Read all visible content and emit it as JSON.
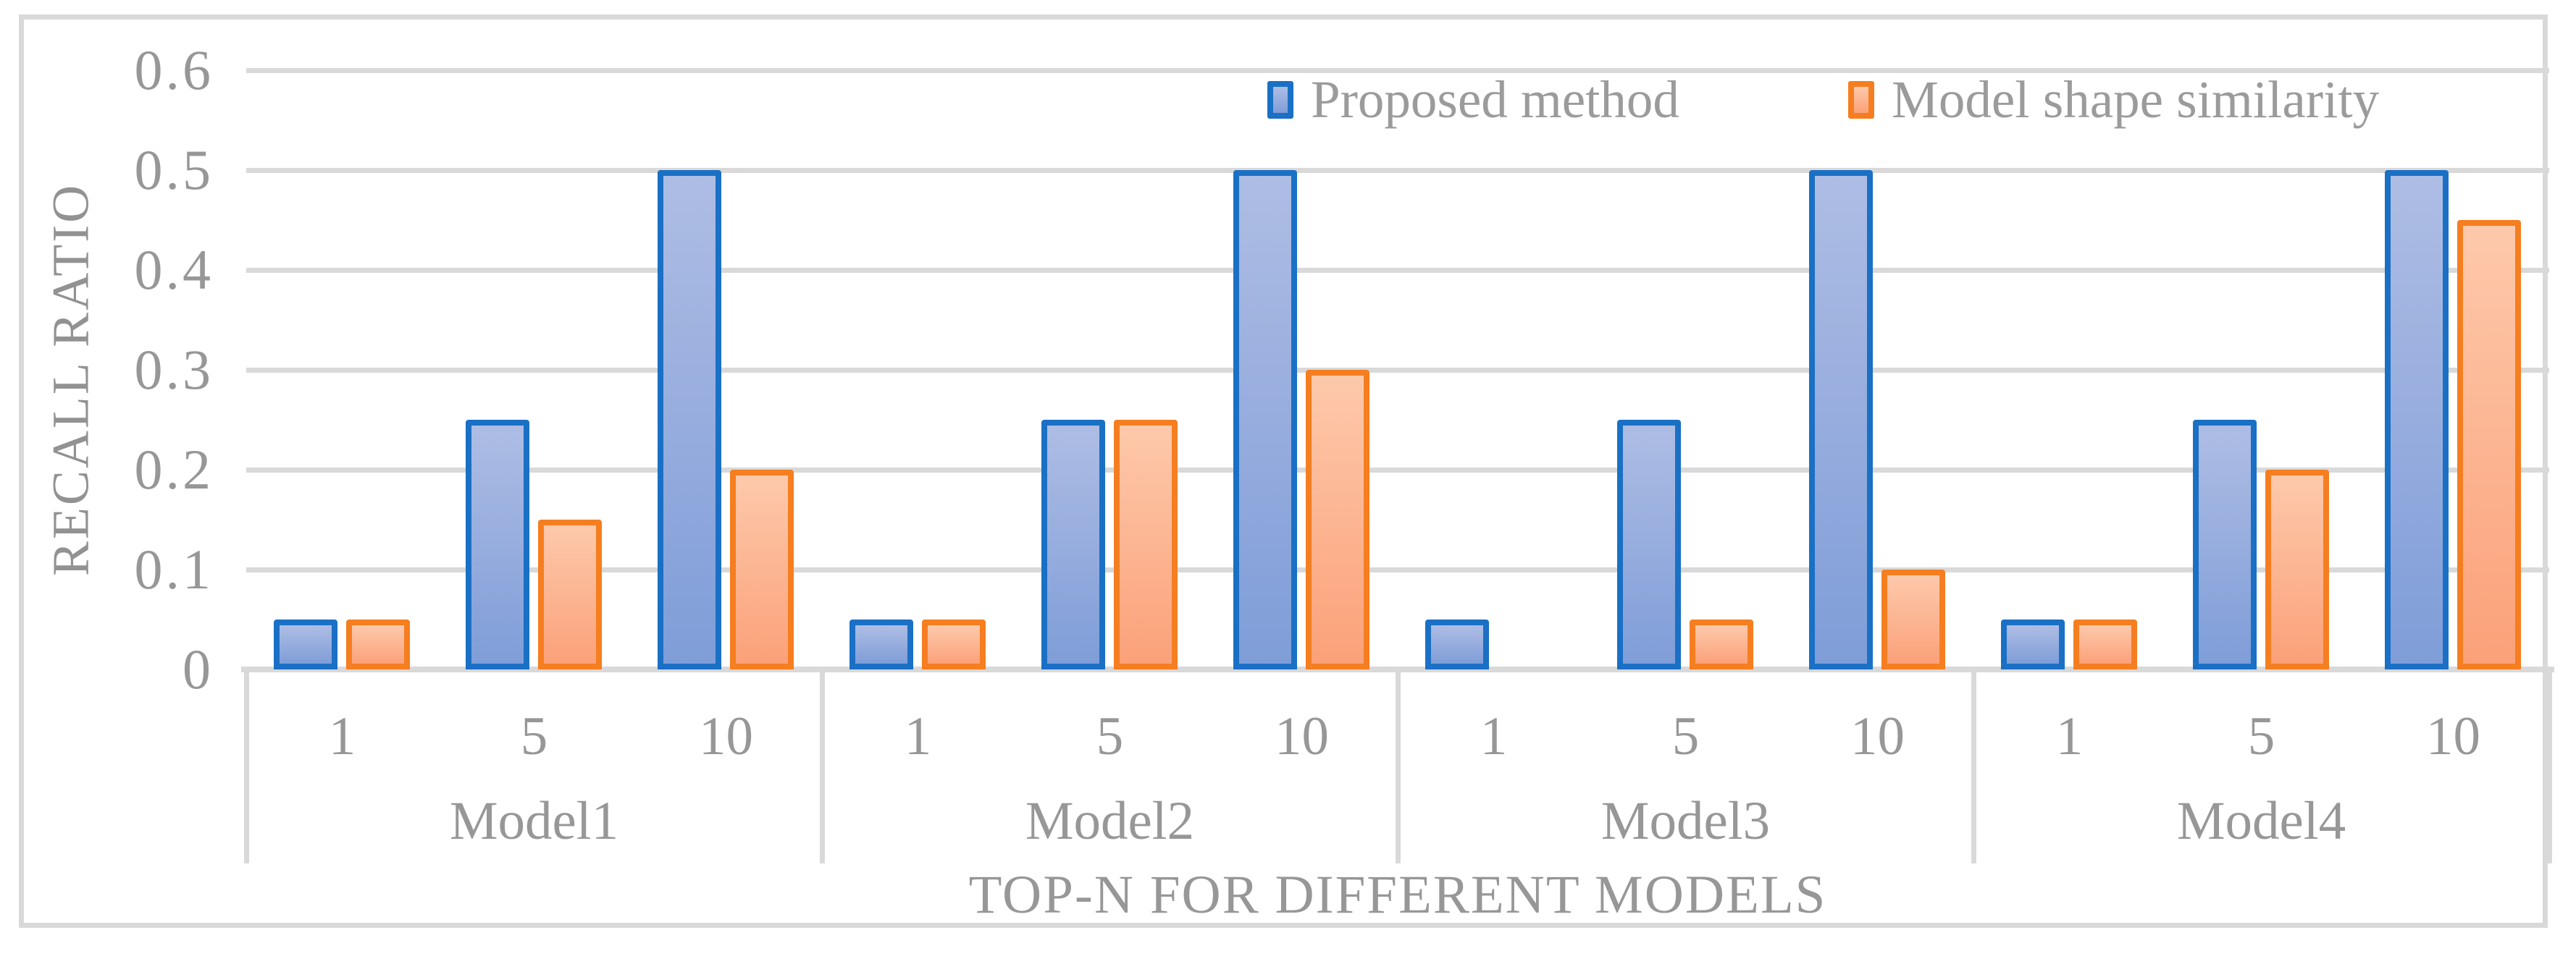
{
  "figure": {
    "background": "#ffffff",
    "frame_color": "#d9d9d9",
    "grid_color": "#d9d9d9",
    "text_color": "#979797"
  },
  "chart_data": {
    "type": "bar",
    "title": "",
    "ylabel": "RECALL RATIO",
    "xlabel": "TOP-N FOR DIFFERENT MODELS",
    "ylim": [
      0,
      0.6
    ],
    "yticks": [
      0,
      0.1,
      0.2,
      0.3,
      0.4,
      0.5,
      0.6
    ],
    "grid": "horizontal",
    "legend_position": "top-center",
    "groups": [
      "Model1",
      "Model2",
      "Model3",
      "Model4"
    ],
    "categories_per_group": [
      "1",
      "5",
      "10"
    ],
    "series": [
      {
        "name": "Proposed method",
        "border_color": "#1a70c4",
        "fill_top": "#aebde4",
        "fill_bottom": "#7f9dd8",
        "values": [
          [
            0.05,
            0.25,
            0.5
          ],
          [
            0.05,
            0.25,
            0.5
          ],
          [
            0.05,
            0.25,
            0.5
          ],
          [
            0.05,
            0.25,
            0.5
          ]
        ]
      },
      {
        "name": "Model shape similarity",
        "border_color": "#f57e20",
        "fill_top": "#fdc9ab",
        "fill_bottom": "#fba179",
        "values": [
          [
            0.05,
            0.15,
            0.2
          ],
          [
            0.05,
            0.25,
            0.3
          ],
          [
            0.0,
            0.05,
            0.1
          ],
          [
            0.05,
            0.2,
            0.45
          ]
        ]
      }
    ]
  }
}
